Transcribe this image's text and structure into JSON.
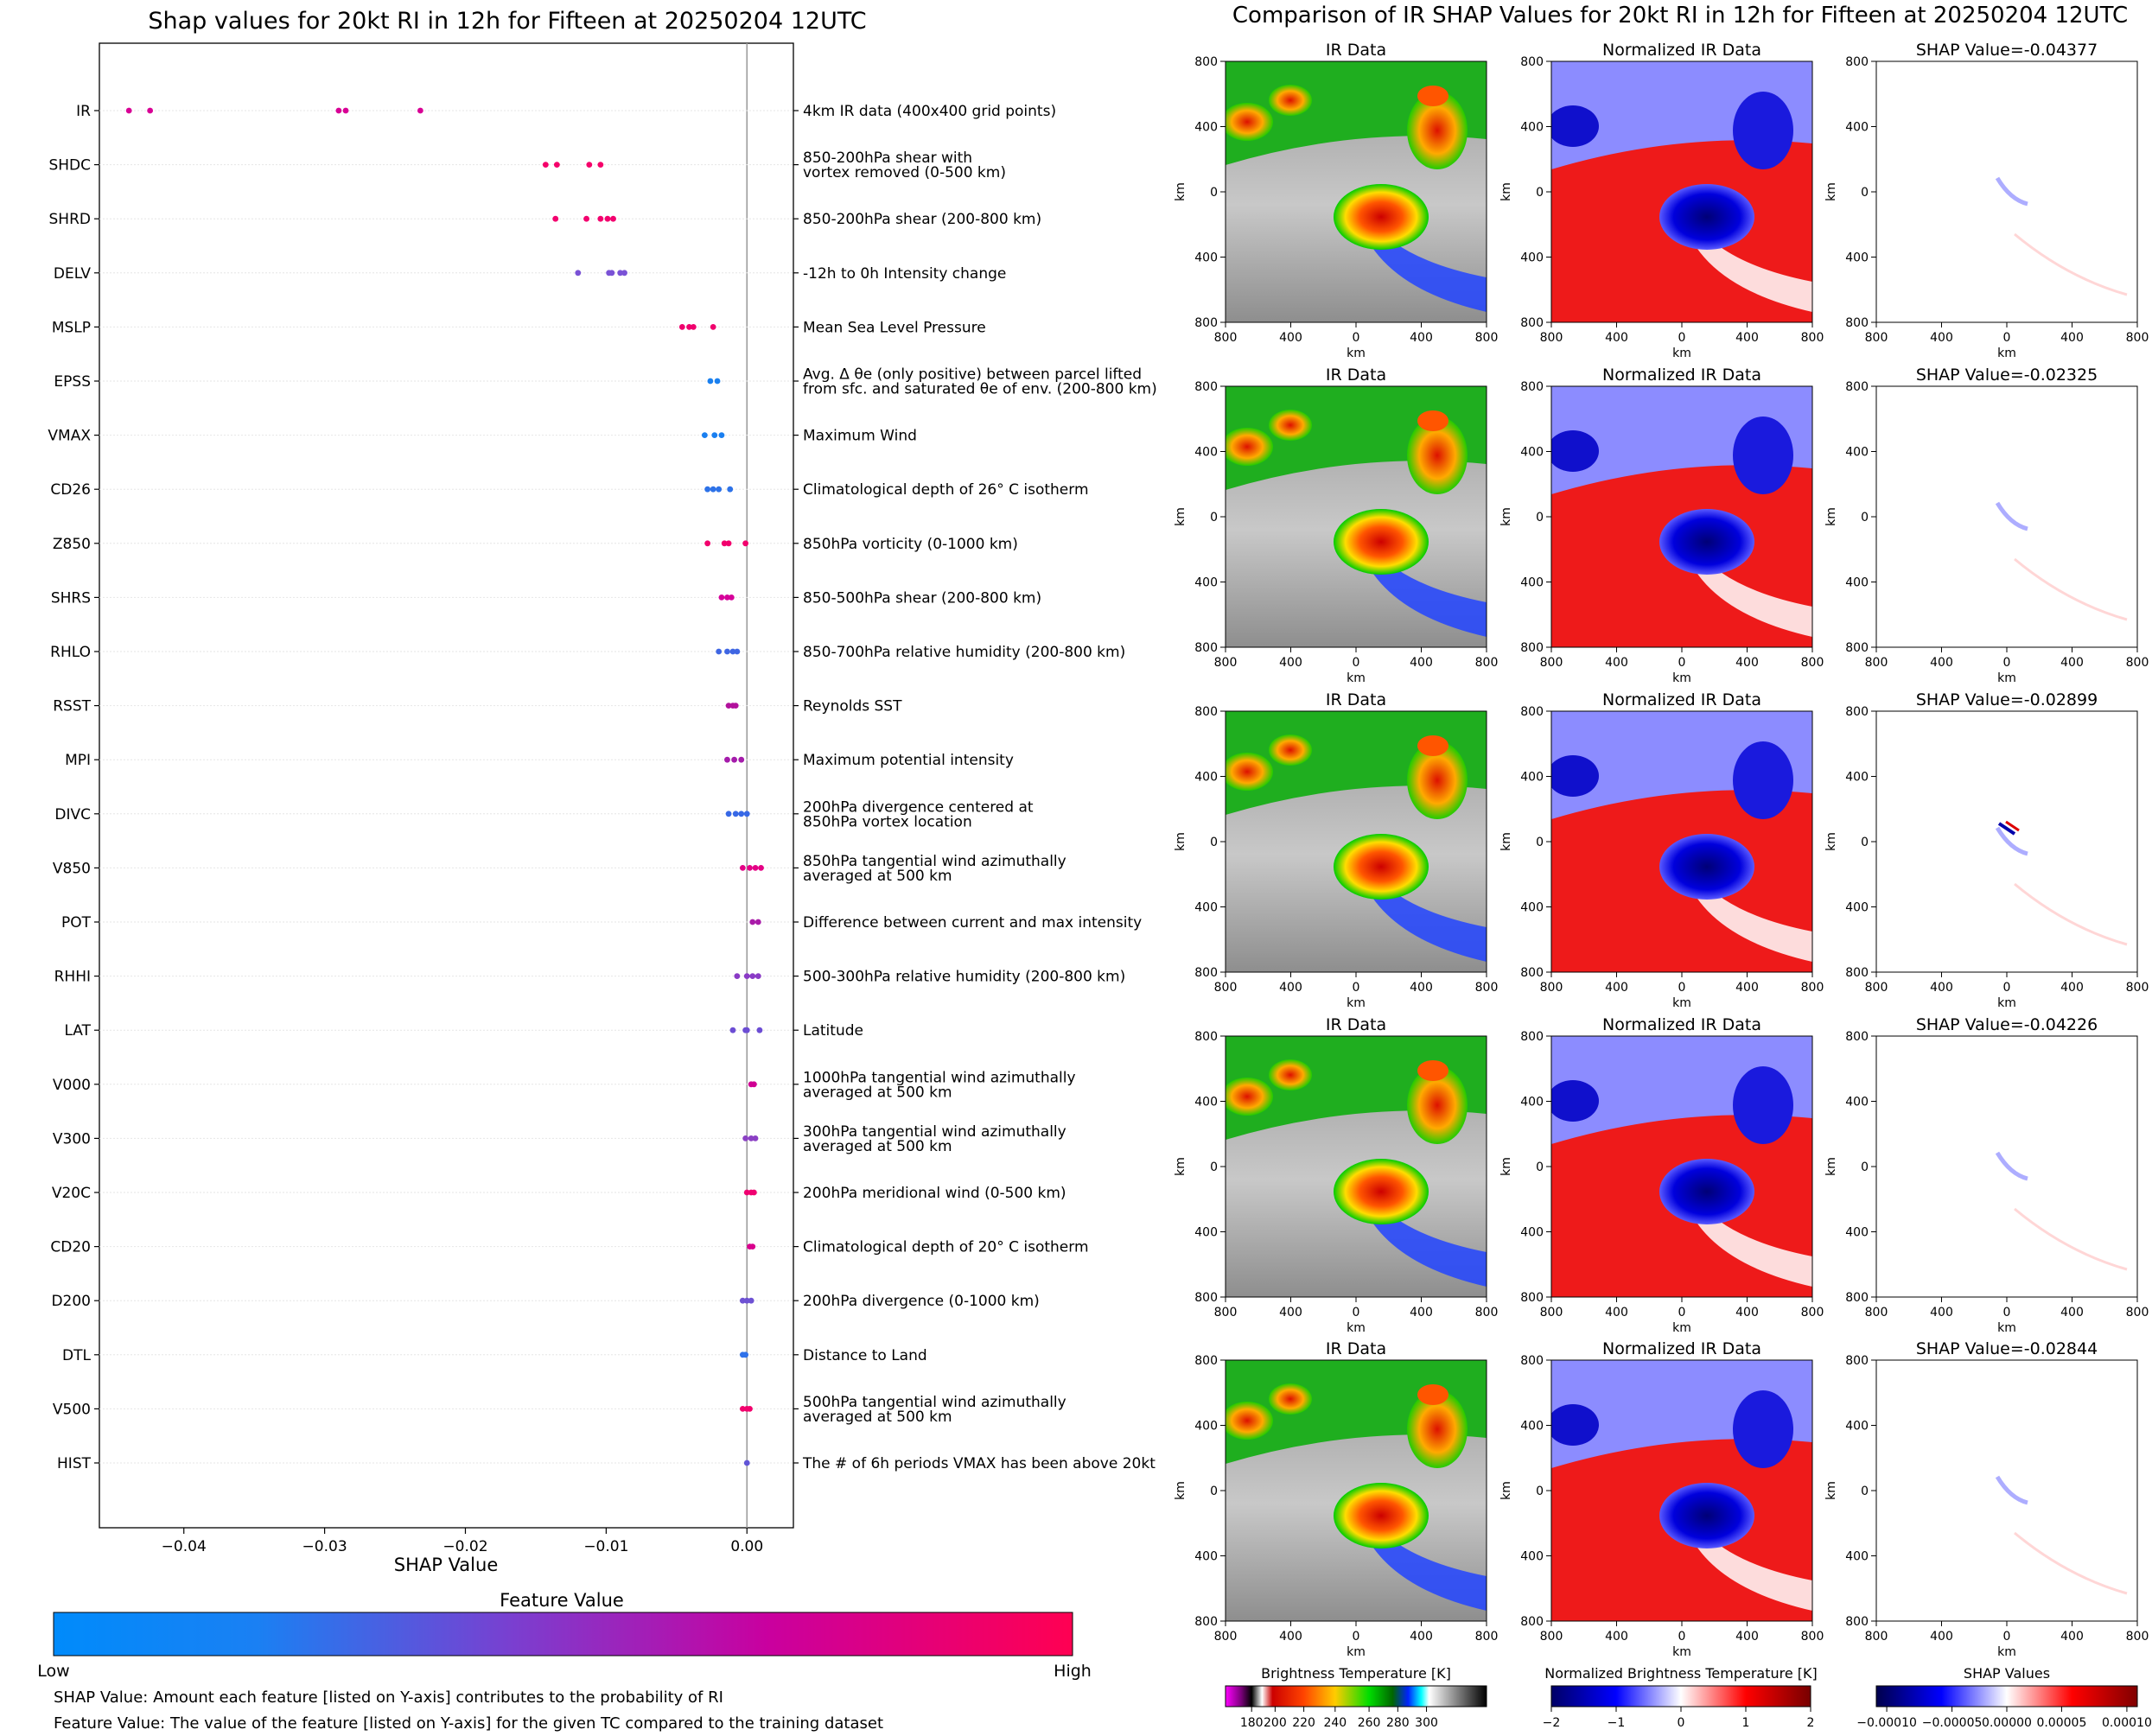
{
  "left_panel": {
    "title": "Shap values for 20kt RI in 12h for Fifteen at 20250204 12UTC",
    "xlabel": "SHAP Value",
    "colorbar": {
      "title": "Feature Value",
      "low": "Low",
      "high": "High",
      "colors": [
        "#008bfb",
        "#ff0052"
      ]
    },
    "notes": [
      "SHAP Value: Amount each feature [listed on Y-axis] contributes to the probability of RI",
      "Feature Value: The value of the feature [listed on Y-axis] for the given TC compared to the training dataset"
    ]
  },
  "right_panel": {
    "title": "Comparison of IR SHAP Values for 20kt RI in 12h for Fifteen at 20250204 12UTC",
    "col_titles": [
      "IR Data",
      "Normalized IR Data"
    ],
    "shap_titles": [
      "SHAP Value=-0.04377",
      "SHAP Value=-0.02325",
      "SHAP Value=-0.02899",
      "SHAP Value=-0.04226",
      "SHAP Value=-0.02844"
    ],
    "axis_label": "km",
    "tick_labels": [
      "800",
      "400",
      "0",
      "400",
      "800"
    ],
    "colorbars": [
      {
        "label": "Brightness Temperature [K]",
        "ticks": [
          "180",
          "200",
          "220",
          "240",
          "260",
          "280",
          "300"
        ]
      },
      {
        "label": "Normalized Brightness Temperature [K]",
        "ticks": [
          "−2",
          "−1",
          "0",
          "1",
          "2"
        ]
      },
      {
        "label": "SHAP Values",
        "ticks": [
          "−0.00010",
          "−0.00005",
          "0.00000",
          "0.00005",
          "0.00010"
        ]
      }
    ]
  },
  "chart_data": {
    "type": "scatter",
    "title": "Shap values for 20kt RI in 12h for Fifteen at 20250204 12UTC",
    "xlabel": "SHAP Value",
    "xlim": [
      -0.046,
      0.0033
    ],
    "xticks": [
      -0.04,
      -0.03,
      -0.02,
      -0.01,
      0.0
    ],
    "xtick_labels": [
      "−0.04",
      "−0.03",
      "−0.02",
      "−0.01",
      "0.00"
    ],
    "grid": false,
    "features": [
      {
        "name": "IR",
        "desc": [
          "4km IR data (400x400 grid points)"
        ],
        "color": "#d80095",
        "values": [
          -0.0439,
          -0.0424,
          -0.029,
          -0.0285,
          -0.0232
        ]
      },
      {
        "name": "SHDC",
        "desc": [
          "850-200hPa shear with",
          "vortex removed (0-500 km)"
        ],
        "color": "#f5006a",
        "values": [
          -0.0143,
          -0.0135,
          -0.0112,
          -0.0104
        ]
      },
      {
        "name": "SHRD",
        "desc": [
          "850-200hPa shear (200-800 km)"
        ],
        "color": "#f3006e",
        "values": [
          -0.0136,
          -0.0114,
          -0.0104,
          -0.0099,
          -0.0095
        ]
      },
      {
        "name": "DELV",
        "desc": [
          "-12h to 0h Intensity change"
        ],
        "color": "#7a52d6",
        "values": [
          -0.012,
          -0.0098,
          -0.0096,
          -0.009,
          -0.0087
        ]
      },
      {
        "name": "MSLP",
        "desc": [
          "Mean Sea Level Pressure"
        ],
        "color": "#f0006d",
        "values": [
          -0.0046,
          -0.0041,
          -0.0038,
          -0.0024
        ]
      },
      {
        "name": "EPSS",
        "desc": [
          "Avg. Δ θe (only positive) between parcel lifted",
          "from sfc. and saturated θe of env. (200-800 km)"
        ],
        "color": "#1a80ef",
        "values": [
          -0.0026,
          -0.0021
        ]
      },
      {
        "name": "VMAX",
        "desc": [
          "Maximum Wind"
        ],
        "color": "#1a7ff0",
        "values": [
          -0.003,
          -0.0023,
          -0.0018
        ]
      },
      {
        "name": "CD26",
        "desc": [
          "Climatological depth of 26° C isotherm"
        ],
        "color": "#2d72e8",
        "values": [
          -0.0028,
          -0.0024,
          -0.002,
          -0.0012
        ]
      },
      {
        "name": "Z850",
        "desc": [
          "850hPa vorticity (0-1000 km)"
        ],
        "color": "#f2006d",
        "values": [
          -0.0028,
          -0.0016,
          -0.0013,
          -0.0001
        ]
      },
      {
        "name": "SHRS",
        "desc": [
          "850-500hPa shear (200-800 km)"
        ],
        "color": "#d6009a",
        "values": [
          -0.0018,
          -0.0014,
          -0.0011
        ]
      },
      {
        "name": "RHLO",
        "desc": [
          "850-700hPa relative humidity (200-800 km)"
        ],
        "color": "#3f66e3",
        "values": [
          -0.002,
          -0.0014,
          -0.001,
          -0.0007
        ]
      },
      {
        "name": "RSST",
        "desc": [
          "Reynolds SST"
        ],
        "color": "#b2119c",
        "values": [
          -0.0013,
          -0.001,
          -0.0008
        ]
      },
      {
        "name": "MPI",
        "desc": [
          "Maximum potential intensity"
        ],
        "color": "#a51cab",
        "values": [
          -0.0014,
          -0.0009,
          -0.0004
        ]
      },
      {
        "name": "DIVC",
        "desc": [
          "200hPa divergence centered at",
          "850hPa vortex location"
        ],
        "color": "#3768e6",
        "values": [
          -0.0013,
          -0.0008,
          -0.0004,
          0.0
        ]
      },
      {
        "name": "V850",
        "desc": [
          "850hPa tangential wind azimuthally",
          "averaged at 500 km"
        ],
        "color": "#e40085",
        "values": [
          -0.0003,
          0.0002,
          0.0006,
          0.001
        ]
      },
      {
        "name": "POT",
        "desc": [
          "Difference between current and max intensity"
        ],
        "color": "#a91ba9",
        "values": [
          0.0004,
          0.0008
        ]
      },
      {
        "name": "RHHI",
        "desc": [
          "500-300hPa relative humidity (200-800 km)"
        ],
        "color": "#8a3bc6",
        "values": [
          -0.0007,
          0.0,
          0.0004,
          0.0008
        ]
      },
      {
        "name": "LAT",
        "desc": [
          "Latitude"
        ],
        "color": "#6c4dd4",
        "values": [
          -0.001,
          -0.0001,
          0.0,
          0.0009
        ]
      },
      {
        "name": "V000",
        "desc": [
          "1000hPa tangential wind azimuthally",
          "averaged at 500 km"
        ],
        "color": "#d00093",
        "values": [
          0.0003,
          0.0005
        ]
      },
      {
        "name": "V300",
        "desc": [
          "300hPa tangential wind azimuthally",
          "averaged at 500 km"
        ],
        "color": "#8b40c4",
        "values": [
          -0.0001,
          0.0003,
          0.0006
        ]
      },
      {
        "name": "V20C",
        "desc": [
          "200hPa meridional wind (0-500 km)"
        ],
        "color": "#f00070",
        "values": [
          0.0,
          0.0003,
          0.0005
        ]
      },
      {
        "name": "CD20",
        "desc": [
          "Climatological depth of 20° C isotherm"
        ],
        "color": "#d9008d",
        "values": [
          0.0002,
          0.0004
        ]
      },
      {
        "name": "D200",
        "desc": [
          "200hPa divergence (0-1000 km)"
        ],
        "color": "#6e52d3",
        "values": [
          -0.0003,
          0.0,
          0.0003
        ]
      },
      {
        "name": "DTL",
        "desc": [
          "Distance to Land"
        ],
        "color": "#2f72ea",
        "values": [
          -0.0003,
          -0.0001
        ]
      },
      {
        "name": "V500",
        "desc": [
          "500hPa tangential wind azimuthally",
          "averaged at 500 km"
        ],
        "color": "#f2006c",
        "values": [
          -0.0003,
          0.0,
          0.0002
        ]
      },
      {
        "name": "HIST",
        "desc": [
          "The # of 6h periods VMAX has been above 20kt"
        ],
        "color": "#6155d7",
        "values": [
          0.0
        ]
      }
    ]
  }
}
